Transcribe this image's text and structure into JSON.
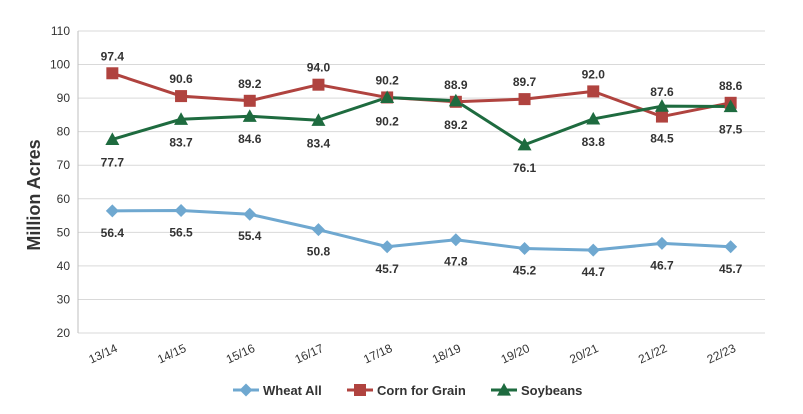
{
  "chart_data": {
    "type": "line",
    "ylabel": "Million Acres",
    "xlabel": "",
    "categories": [
      "13/14",
      "14/15",
      "15/16",
      "16/17",
      "17/18",
      "18/19",
      "19/20",
      "20/21",
      "21/22",
      "22/23"
    ],
    "ylim": [
      20,
      110
    ],
    "yticks": [
      20,
      30,
      40,
      50,
      60,
      70,
      80,
      90,
      100,
      110
    ],
    "grid": true,
    "legend": "bottom",
    "series": [
      {
        "name": "Wheat All",
        "color": "#6fa8d0",
        "marker": "diamond",
        "values": [
          56.4,
          56.5,
          55.4,
          50.8,
          45.7,
          47.8,
          45.2,
          44.7,
          46.7,
          45.7
        ],
        "labels": [
          "56.4",
          "56.5",
          "55.4",
          "50.8",
          "45.7",
          "47.8",
          "45.2",
          "44.7",
          "46.7",
          "45.7"
        ]
      },
      {
        "name": "Corn for Grain",
        "color": "#b0433f",
        "marker": "square",
        "values": [
          97.4,
          90.6,
          89.2,
          94.0,
          90.2,
          88.9,
          89.7,
          92.0,
          84.5,
          88.6
        ],
        "labels": [
          "97.4",
          "90.6",
          "89.2",
          "94.0",
          "90.2",
          "88.9",
          "89.7",
          "92.0",
          "84.5",
          "88.6"
        ]
      },
      {
        "name": "Soybeans",
        "color": "#1e6b3f",
        "marker": "triangle",
        "values": [
          77.7,
          83.7,
          84.6,
          83.4,
          90.2,
          89.2,
          76.1,
          83.8,
          87.6,
          87.5
        ],
        "labels": [
          "77.7",
          "83.7",
          "84.6",
          "83.4",
          "90.2",
          "89.2",
          "76.1",
          "83.8",
          "87.6",
          "87.5"
        ]
      }
    ]
  }
}
